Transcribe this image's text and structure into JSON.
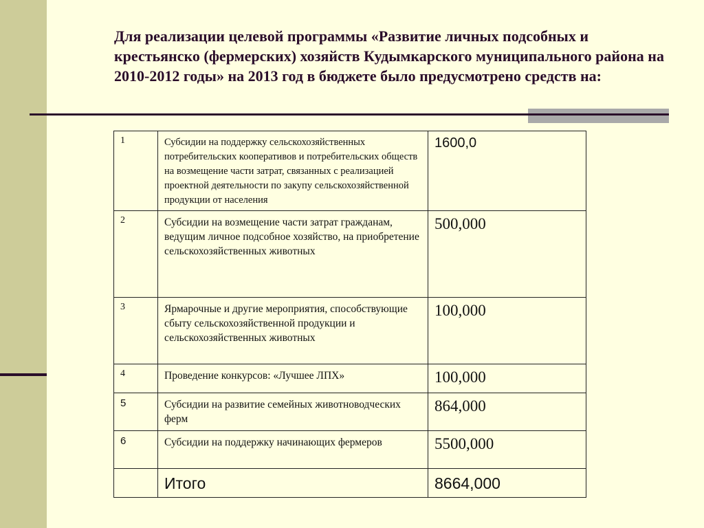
{
  "title": "Для реализации целевой программы «Развитие личных подсобных и крестьянско (фермерских) хозяйств Кудымкарского муниципального района на 2010-2012 годы» на 2013 год в бюджете было предусмотрено средств на:",
  "table": {
    "rows": [
      {
        "num": "1",
        "desc": "Субсидии на поддержку сельскохозяйственных потребительских кооперативов и потребительских обществ на возмещение части затрат, связанных с реализацией проектной деятельности по закупу сельскохозяйственной продукции от населения",
        "value": "1600,0"
      },
      {
        "num": "2",
        "desc": "Субсидии на возмещение части затрат гражданам, ведущим личное подсобное хозяйство, на приобретение сельскохозяйственных животных",
        "value": "500,000"
      },
      {
        "num": "3",
        "desc": "Ярмарочные и другие мероприятия, способствующие сбыту сельскохозяйственной продукции и сельскохозяйственных животных",
        "value": "100,000"
      },
      {
        "num": "4",
        "desc": "Проведение конкурсов: «Лучшее ЛПХ»",
        "value": "100,000"
      },
      {
        "num": "5",
        "desc": "Субсидии на развитие семейных животноводческих ферм",
        "value": "864,000"
      },
      {
        "num": "6",
        "desc": "Субсидии на поддержку начинающих фермеров",
        "value": "5500,000"
      }
    ],
    "total": {
      "label": "Итого",
      "value": "8664,000"
    }
  }
}
